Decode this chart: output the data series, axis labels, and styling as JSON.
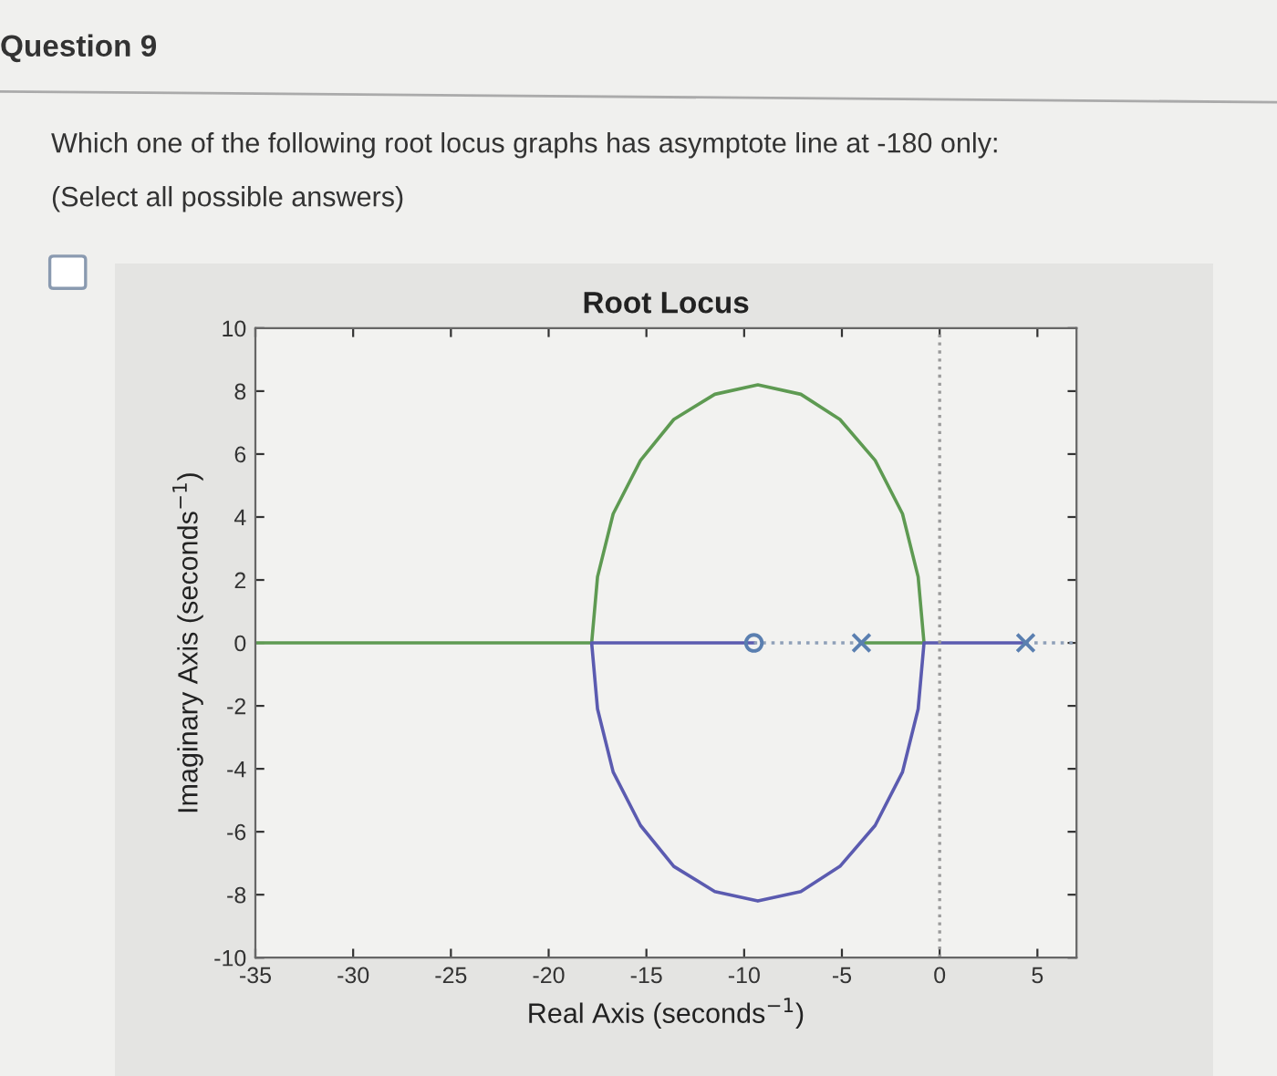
{
  "chart_data": {
    "type": "line",
    "title": "Root Locus",
    "xlabel": "Real Axis (seconds$^{−1}$)",
    "ylabel": "Imaginary Axis (seconds$^{−1}$)",
    "annotations": [
      "Question 9",
      "Which one of the following root locus graphs has asymptote line at -180 only:",
      "(Select all possible answers)"
    ],
    "series": [
      {
        "color": "#5e9a52",
        "line_style": "solid",
        "marker": "none",
        "x": [
          -35,
          -17.8,
          -17.5,
          -16.7,
          -15.3,
          -13.6,
          -11.5,
          -9.3,
          -7.1,
          -5.1,
          -3.3,
          -1.9,
          -1.1,
          -0.8,
          -4
        ],
        "values": [
          0,
          0,
          2.1,
          4.1,
          5.8,
          7.1,
          7.9,
          8.2,
          7.9,
          7.1,
          5.8,
          4.1,
          2.1,
          0,
          0
        ]
      },
      {
        "color": "#5b5bb0",
        "line_style": "solid",
        "marker": "none",
        "x": [
          4.4,
          -0.8,
          -1.1,
          -1.9,
          -3.3,
          -5.1,
          -7.1,
          -9.3,
          -11.5,
          -13.6,
          -15.3,
          -16.7,
          -17.5,
          -17.8,
          -9.5
        ],
        "values": [
          0,
          0,
          -2.1,
          -4.1,
          -5.8,
          -7.1,
          -7.9,
          -8.2,
          -7.9,
          -7.1,
          -5.8,
          -4.1,
          -2.1,
          0,
          0
        ]
      },
      {
        "color": "#8fa0b8",
        "line_style": "dotted",
        "marker": "none",
        "x": [
          -9.5,
          -4
        ],
        "values": [
          0,
          0
        ]
      },
      {
        "color": "#8fa0b8",
        "line_style": "dotted",
        "marker": "none",
        "x": [
          4.4,
          7
        ],
        "values": [
          0,
          0
        ]
      },
      {
        "type": "scatter",
        "color": "#5a7fb0",
        "marker": "circle",
        "x": [
          -9.5
        ],
        "values": [
          0
        ]
      },
      {
        "type": "scatter",
        "color": "#5a7fb0",
        "marker": "cross",
        "x": [
          -4,
          4.4
        ],
        "values": [
          0,
          0
        ]
      }
    ],
    "ref_lines": [
      {
        "axis": "x",
        "value": 0,
        "label": null,
        "color": "#9a9a9a",
        "line_style": "dotted"
      }
    ],
    "xlim": [
      -35,
      7
    ],
    "xticks": [
      -35,
      -30,
      -25,
      -20,
      -15,
      -10,
      -5,
      0,
      5
    ],
    "ylim": [
      -10,
      10
    ],
    "yticks": [
      -10,
      -8,
      -6,
      -4,
      -2,
      0,
      2,
      4,
      6,
      8,
      10
    ],
    "grid": false,
    "legend": false
  }
}
